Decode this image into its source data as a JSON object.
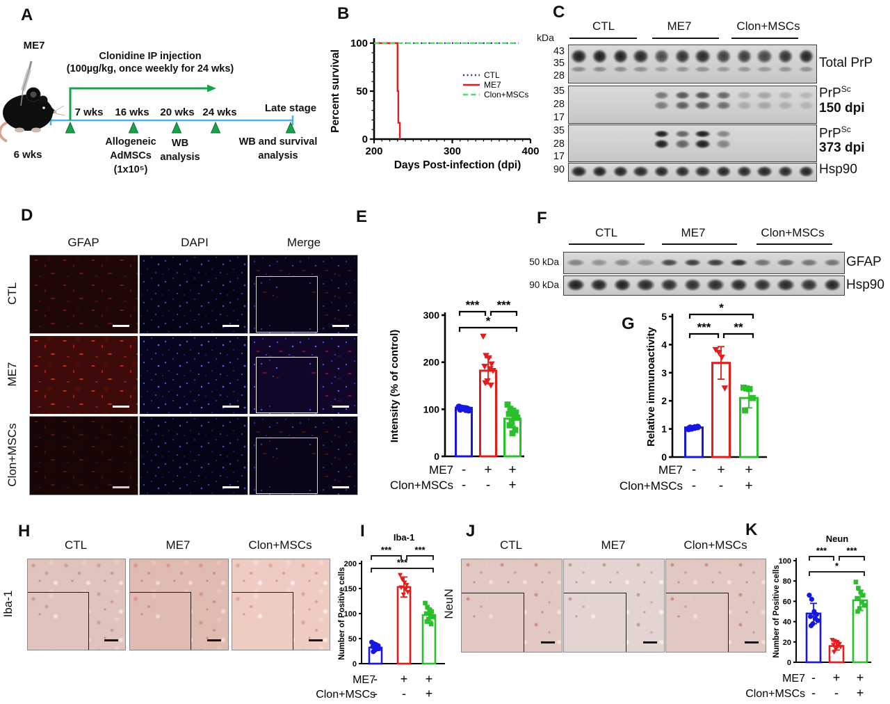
{
  "colors": {
    "blue": "#1717e0",
    "red": "#e51c1c",
    "green": "#2bbf2b",
    "timeline_blue": "#45b5e6",
    "arrow_green": "#17a24b",
    "ctl_dotted": "#2b2b9e",
    "clon_dashed": "#4ed96a"
  },
  "panels": {
    "A": {
      "label": "A",
      "mouse": "ME7",
      "age": "6 wks",
      "injection_line1": "Clonidine IP injection",
      "injection_line2": "(100µg/kg, once weekly for 24 wks)",
      "ticks": [
        "7 wks",
        "16 wks",
        "20 wks",
        "24 wks"
      ],
      "late_stage": "Late stage",
      "msc_lines": [
        "Allogeneic",
        "AdMSCs",
        "(1x10⁵)"
      ],
      "wb_lines": [
        "WB",
        "analysis"
      ],
      "wbs_lines": [
        "WB and survival",
        "analysis"
      ]
    },
    "B": {
      "label": "B"
    },
    "C": {
      "label": "C",
      "kda_header": "kDa",
      "groups": [
        "CTL",
        "ME7",
        "Clon+MSCs"
      ]
    },
    "D": {
      "label": "D",
      "columns": [
        "GFAP",
        "DAPI",
        "Merge"
      ],
      "rows": [
        "CTL",
        "ME7",
        "Clon+MSCs"
      ]
    },
    "E": {
      "label": "E"
    },
    "F": {
      "label": "F",
      "groups": [
        "CTL",
        "ME7",
        "Clon+MSCs"
      ],
      "left_labels": [
        "50 kDa",
        "90 kDa"
      ],
      "right_labels": [
        "GFAP",
        "Hsp90"
      ]
    },
    "G": {
      "label": "G"
    },
    "H": {
      "label": "H",
      "groups": [
        "CTL",
        "ME7",
        "Clon+MSCs"
      ],
      "row_label": "Iba-1"
    },
    "I": {
      "label": "I"
    },
    "J": {
      "label": "J",
      "groups": [
        "CTL",
        "ME7",
        "Clon+MSCs"
      ],
      "row_label": "NeuN"
    },
    "K": {
      "label": "K"
    }
  },
  "western_c": {
    "blots": [
      {
        "kda": [
          "43",
          "35",
          "28"
        ],
        "label_main": "Total PrP",
        "label_sup": "",
        "label_sub": "",
        "lanes": [
          0.95,
          0.96,
          0.95,
          0.9,
          0.72,
          0.85,
          0.9,
          0.78,
          0.8,
          0.75,
          0.85,
          0.92
        ]
      },
      {
        "kda": [
          "35",
          "28",
          "17"
        ],
        "label_main": "PrP",
        "label_sup": "Sc",
        "label_sub": "150 dpi",
        "lanes": [
          0,
          0,
          0,
          0,
          0.5,
          0.68,
          0.72,
          0.58,
          0.22,
          0.25,
          0.2,
          0.16
        ]
      },
      {
        "kda": [
          "35",
          "28",
          "17"
        ],
        "label_main": "PrP",
        "label_sup": "Sc",
        "label_sub": "373 dpi",
        "lanes": [
          0,
          0,
          0,
          0,
          0.97,
          0.6,
          0.97,
          0.42,
          0,
          0,
          0,
          0
        ]
      },
      {
        "kda": [
          "90"
        ],
        "label_main": "Hsp90",
        "label_sup": "",
        "label_sub": "",
        "lanes": [
          0.95,
          0.95,
          0.93,
          0.9,
          0.92,
          0.9,
          0.9,
          0.92,
          0.9,
          0.92,
          0.9,
          0.93
        ]
      }
    ]
  },
  "western_f": {
    "blots": [
      {
        "left": "50 kDa",
        "right": "GFAP",
        "lanes": [
          0.42,
          0.34,
          0.4,
          0.32,
          0.74,
          0.8,
          0.8,
          0.88,
          0.52,
          0.58,
          0.5,
          0.5
        ]
      },
      {
        "left": "90 kDa",
        "right": "Hsp90",
        "lanes": [
          0.95,
          0.93,
          0.95,
          0.9,
          0.88,
          0.87,
          0.88,
          0.9,
          0.87,
          0.9,
          0.86,
          0.92
        ]
      }
    ]
  },
  "chart_data": [
    {
      "id": "survival",
      "type": "line",
      "title": "",
      "xlabel": "Days Post-infection (dpi)",
      "ylabel": "Percent survival",
      "xlim": [
        200,
        400
      ],
      "ylim": [
        0,
        100
      ],
      "xticks": [
        200,
        300,
        400
      ],
      "yticks": [
        0,
        50,
        100
      ],
      "legend_position": "middle-right",
      "series": [
        {
          "name": "CTL",
          "color": "#2b2b9e",
          "style": "dotted",
          "points": [
            [
              200,
              100
            ],
            [
              385,
              100
            ]
          ]
        },
        {
          "name": "ME7",
          "color": "#e51c1c",
          "style": "solid",
          "points": [
            [
              200,
              100
            ],
            [
              230,
              100
            ],
            [
              230,
              50
            ],
            [
              231,
              50
            ],
            [
              231,
              17
            ],
            [
              233,
              17
            ],
            [
              233,
              0
            ]
          ]
        },
        {
          "name": "Clon+MSCs",
          "color": "#4ed96a",
          "style": "dashed",
          "points": [
            [
              200,
              100
            ],
            [
              385,
              100
            ]
          ]
        }
      ]
    },
    {
      "id": "gfap_intensity",
      "type": "bar",
      "title": "",
      "ylabel": "Intensity (% of control)",
      "ylim": [
        0,
        300
      ],
      "yticks": [
        0,
        100,
        200,
        300
      ],
      "categories": [
        "CTL",
        "ME7",
        "Clon+MSCs"
      ],
      "values": [
        103,
        182,
        80
      ],
      "errors": [
        4,
        28,
        16
      ],
      "colors": [
        "#1717e0",
        "#e51c1c",
        "#2bbf2b"
      ],
      "markers": [
        "circle",
        "tri",
        "square"
      ],
      "scatter": [
        [
          105,
          103,
          102,
          101,
          100,
          99,
          98
        ],
        [
          255,
          214,
          209,
          196,
          191,
          186,
          182,
          160,
          156,
          151
        ],
        [
          110,
          101,
          97,
          93,
          90,
          87,
          82,
          72,
          66,
          56,
          49
        ]
      ],
      "sig": [
        {
          "a": 0,
          "b": 1,
          "label": "***",
          "row": 0
        },
        {
          "a": 1,
          "b": 2,
          "label": "***",
          "row": 0
        },
        {
          "a": 0,
          "b": 2,
          "label": "*",
          "row": 1
        }
      ],
      "xrows": [
        {
          "label": "ME7",
          "signs": [
            "-",
            "+",
            "+"
          ]
        },
        {
          "label": "Clon+MSCs",
          "signs": [
            "-",
            "-",
            "+"
          ]
        }
      ]
    },
    {
      "id": "gfap_wb",
      "type": "bar",
      "title": "",
      "ylabel": "Relative immunoactivity",
      "ylim": [
        0,
        5
      ],
      "yticks": [
        0,
        1,
        2,
        3,
        4,
        5
      ],
      "categories": [
        "CTL",
        "ME7",
        "Clon+MSCs"
      ],
      "values": [
        1.05,
        3.35,
        2.1
      ],
      "errors": [
        0.05,
        0.58,
        0.35
      ],
      "colors": [
        "#1717e0",
        "#e51c1c",
        "#2bbf2b"
      ],
      "markers": [
        "circle",
        "tri",
        "square"
      ],
      "scatter": [
        [
          1.0,
          1.02,
          1.05,
          1.07,
          1.04
        ],
        [
          3.82,
          3.72,
          3.55,
          2.45
        ],
        [
          2.47,
          2.44,
          2.42,
          2.1,
          1.66
        ]
      ],
      "sig": [
        {
          "a": 0,
          "b": 2,
          "label": "*",
          "row": 0
        },
        {
          "a": 0,
          "b": 1,
          "label": "***",
          "row": 1
        },
        {
          "a": 1,
          "b": 2,
          "label": "**",
          "row": 1
        }
      ],
      "xrows": [
        {
          "label": "ME7",
          "signs": [
            "-",
            "+",
            "+"
          ]
        },
        {
          "label": "Clon+MSCs",
          "signs": [
            "-",
            "-",
            "+"
          ]
        }
      ]
    },
    {
      "id": "iba1_count",
      "type": "bar",
      "title": "Iba-1",
      "ylabel": "Number of Positive cells",
      "ylim": [
        0,
        200
      ],
      "yticks": [
        0,
        50,
        100,
        150,
        200
      ],
      "categories": [
        "CTL",
        "ME7",
        "Clon+MSCs"
      ],
      "values": [
        32,
        153,
        97
      ],
      "errors": [
        6,
        20,
        12
      ],
      "colors": [
        "#1717e0",
        "#e51c1c",
        "#2bbf2b"
      ],
      "markers": [
        "circle",
        "tri",
        "square"
      ],
      "scatter": [
        [
          43,
          40,
          38,
          36,
          34,
          32,
          30,
          27,
          24
        ],
        [
          177,
          168,
          162,
          157,
          152,
          148,
          143,
          138
        ],
        [
          121,
          113,
          108,
          104,
          100,
          97,
          93,
          89,
          84,
          79
        ]
      ],
      "sig": [
        {
          "a": 0,
          "b": 1,
          "label": "***",
          "row": 0
        },
        {
          "a": 1,
          "b": 2,
          "label": "***",
          "row": 0
        },
        {
          "a": 0,
          "b": 2,
          "label": "***",
          "row": 1
        }
      ],
      "xrows": [
        {
          "label": "ME7",
          "signs": [
            "-",
            "+",
            "+"
          ]
        },
        {
          "label": "Clon+MSCs",
          "signs": [
            "-",
            "-",
            "+"
          ]
        }
      ]
    },
    {
      "id": "neun_count",
      "type": "bar",
      "title": "Neun",
      "ylabel": "Number of Positive cells",
      "ylim": [
        0,
        100
      ],
      "yticks": [
        0,
        20,
        40,
        60,
        80,
        100
      ],
      "categories": [
        "CTL",
        "ME7",
        "Clon+MSCs"
      ],
      "values": [
        48,
        16,
        61
      ],
      "errors": [
        10,
        4,
        10
      ],
      "colors": [
        "#1717e0",
        "#e51c1c",
        "#2bbf2b"
      ],
      "markers": [
        "circle",
        "tri",
        "square"
      ],
      "scatter": [
        [
          66,
          62,
          50,
          47,
          45,
          43,
          41,
          38,
          36
        ],
        [
          22,
          21,
          20,
          18,
          17,
          16,
          15,
          13,
          10
        ],
        [
          79,
          73,
          69,
          66,
          63,
          59,
          56,
          53,
          50
        ]
      ],
      "sig": [
        {
          "a": 0,
          "b": 1,
          "label": "***",
          "row": 0
        },
        {
          "a": 1,
          "b": 2,
          "label": "***",
          "row": 0
        },
        {
          "a": 0,
          "b": 2,
          "label": "*",
          "row": 1
        }
      ],
      "xrows": [
        {
          "label": "ME7",
          "signs": [
            "-",
            "+",
            "+"
          ]
        },
        {
          "label": "Clon+MSCs",
          "signs": [
            "-",
            "-",
            "+"
          ]
        }
      ]
    }
  ]
}
